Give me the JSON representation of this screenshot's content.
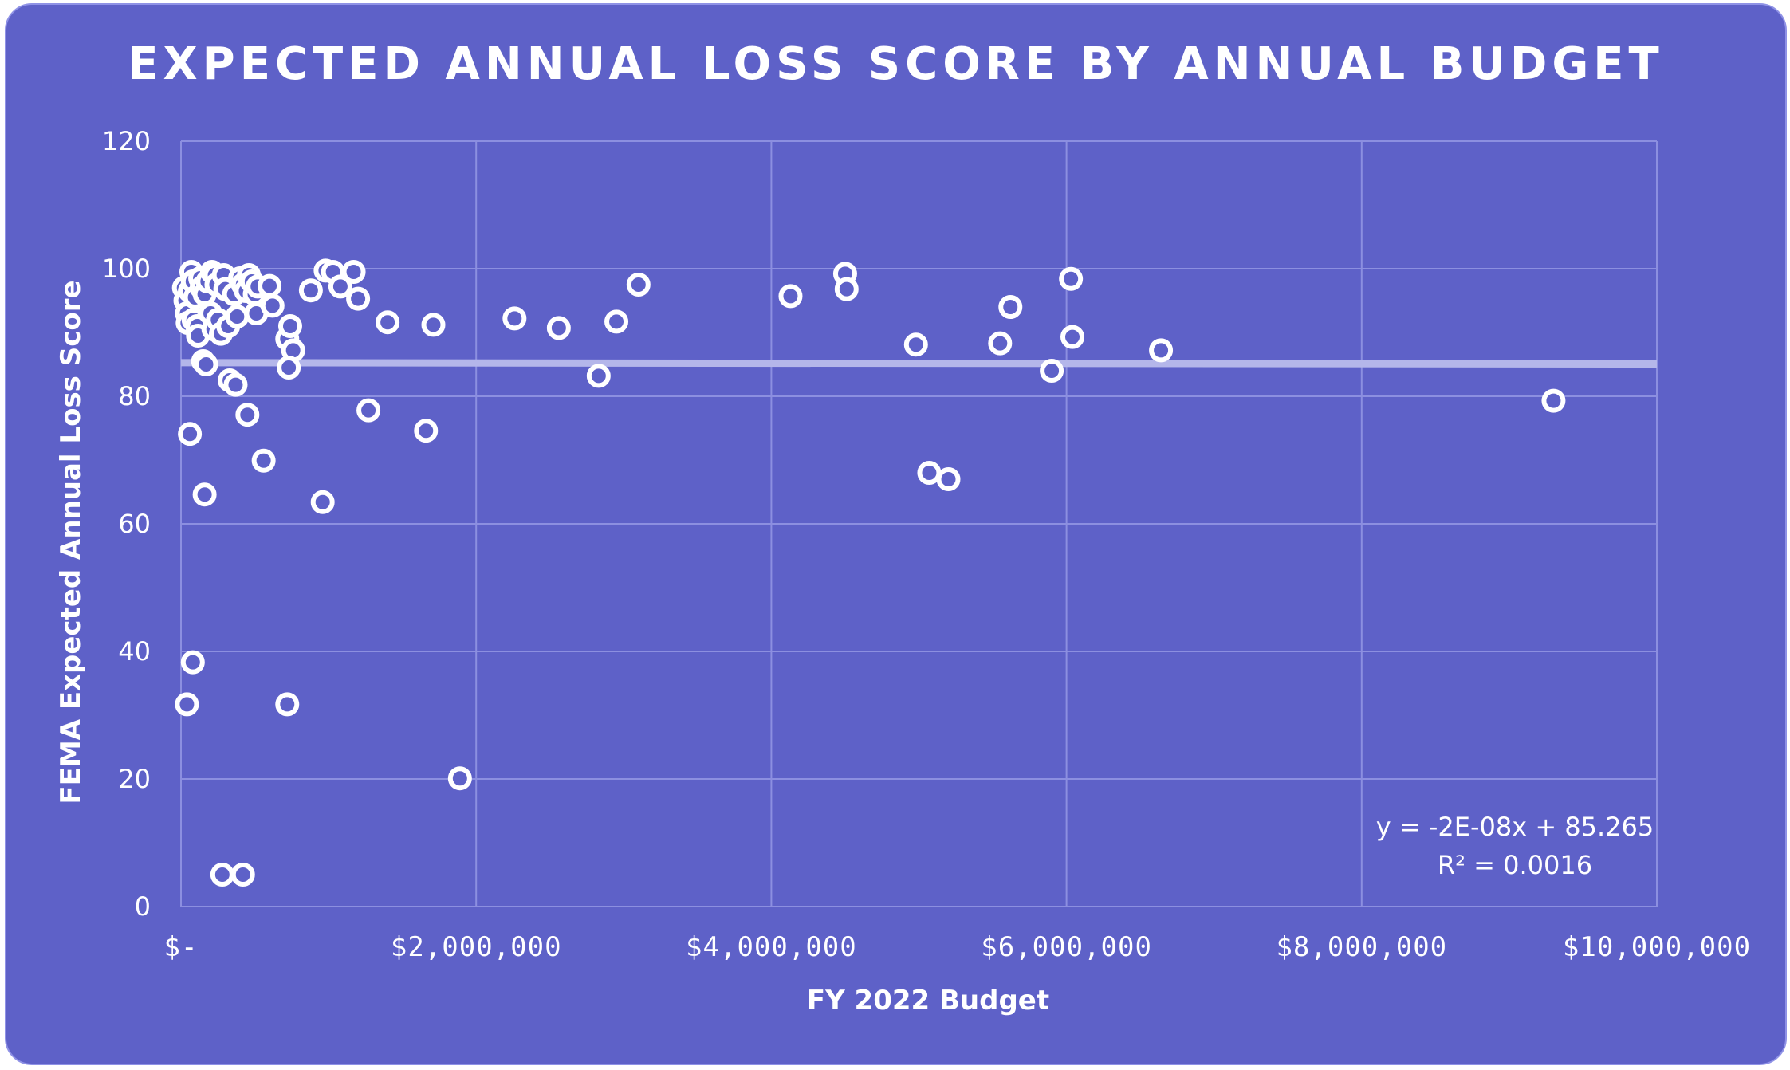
{
  "chart_data": {
    "type": "scatter",
    "title": "EXPECTED ANNUAL LOSS SCORE BY ANNUAL BUDGET",
    "xlabel": "FY 2022 Budget",
    "ylabel": "FEMA  Expected Annual Loss Score",
    "xlim": [
      0,
      10000000
    ],
    "ylim": [
      0,
      120
    ],
    "x_ticks": [
      0,
      2000000,
      4000000,
      6000000,
      8000000,
      10000000
    ],
    "x_tick_labels": [
      "$-",
      "$2,000,000",
      "$4,000,000",
      "$6,000,000",
      "$8,000,000",
      "$10,000,000"
    ],
    "y_ticks": [
      0,
      20,
      40,
      60,
      80,
      100,
      120
    ],
    "y_tick_labels": [
      "0",
      "20",
      "40",
      "60",
      "80",
      "100",
      "120"
    ],
    "grid": true,
    "trendline": {
      "slope": -2e-08,
      "intercept": 85.265,
      "equation": "y = -2E-08x + 85.265",
      "r_squared": "R² = 0.0016"
    },
    "colors": {
      "background": "#5E61C8",
      "marker": "#ffffff",
      "trendline": "#b4b6ea",
      "grid": "#8c8fe0"
    },
    "points": [
      {
        "x": 20000,
        "y": 97
      },
      {
        "x": 30000,
        "y": 95
      },
      {
        "x": 40000,
        "y": 93
      },
      {
        "x": 45000,
        "y": 91.5
      },
      {
        "x": 60000,
        "y": 96.5
      },
      {
        "x": 70000,
        "y": 99.5
      },
      {
        "x": 80000,
        "y": 98
      },
      {
        "x": 85000,
        "y": 92
      },
      {
        "x": 95000,
        "y": 95.5
      },
      {
        "x": 110000,
        "y": 91
      },
      {
        "x": 115000,
        "y": 89.5
      },
      {
        "x": 130000,
        "y": 98.5
      },
      {
        "x": 140000,
        "y": 97
      },
      {
        "x": 150000,
        "y": 85.5
      },
      {
        "x": 160000,
        "y": 96
      },
      {
        "x": 170000,
        "y": 85
      },
      {
        "x": 180000,
        "y": 98
      },
      {
        "x": 200000,
        "y": 93
      },
      {
        "x": 210000,
        "y": 99.5
      },
      {
        "x": 220000,
        "y": 90.5
      },
      {
        "x": 230000,
        "y": 99
      },
      {
        "x": 240000,
        "y": 97.5
      },
      {
        "x": 250000,
        "y": 92
      },
      {
        "x": 270000,
        "y": 89.8
      },
      {
        "x": 290000,
        "y": 99
      },
      {
        "x": 300000,
        "y": 96.8
      },
      {
        "x": 320000,
        "y": 91
      },
      {
        "x": 330000,
        "y": 82.5
      },
      {
        "x": 360000,
        "y": 96
      },
      {
        "x": 370000,
        "y": 81.8
      },
      {
        "x": 380000,
        "y": 92.5
      },
      {
        "x": 400000,
        "y": 98.5
      },
      {
        "x": 420000,
        "y": 97.5
      },
      {
        "x": 440000,
        "y": 96.5
      },
      {
        "x": 460000,
        "y": 99
      },
      {
        "x": 480000,
        "y": 98
      },
      {
        "x": 500000,
        "y": 96
      },
      {
        "x": 510000,
        "y": 93
      },
      {
        "x": 520000,
        "y": 97.2
      },
      {
        "x": 600000,
        "y": 97.3
      },
      {
        "x": 620000,
        "y": 94.2
      },
      {
        "x": 720000,
        "y": 89
      },
      {
        "x": 740000,
        "y": 91
      },
      {
        "x": 760000,
        "y": 87.2
      },
      {
        "x": 730000,
        "y": 84.5
      },
      {
        "x": 880000,
        "y": 96.6
      },
      {
        "x": 980000,
        "y": 99.7
      },
      {
        "x": 1030000,
        "y": 99.5
      },
      {
        "x": 1080000,
        "y": 97.2
      },
      {
        "x": 1170000,
        "y": 99.5
      },
      {
        "x": 1200000,
        "y": 95.3
      },
      {
        "x": 1400000,
        "y": 91.6
      },
      {
        "x": 1710000,
        "y": 91.2
      },
      {
        "x": 2260000,
        "y": 92.2
      },
      {
        "x": 2560000,
        "y": 90.7
      },
      {
        "x": 2950000,
        "y": 91.7
      },
      {
        "x": 3100000,
        "y": 97.5
      },
      {
        "x": 4130000,
        "y": 95.7
      },
      {
        "x": 4500000,
        "y": 99.2
      },
      {
        "x": 4510000,
        "y": 96.8
      },
      {
        "x": 4980000,
        "y": 88.1
      },
      {
        "x": 5550000,
        "y": 88.3
      },
      {
        "x": 5620000,
        "y": 94
      },
      {
        "x": 6030000,
        "y": 98.4
      },
      {
        "x": 6040000,
        "y": 89.3
      },
      {
        "x": 6640000,
        "y": 87.2
      },
      {
        "x": 2830000,
        "y": 83.2
      },
      {
        "x": 5900000,
        "y": 84
      },
      {
        "x": 1270000,
        "y": 77.8
      },
      {
        "x": 1660000,
        "y": 74.6
      },
      {
        "x": 60000,
        "y": 74.1
      },
      {
        "x": 450000,
        "y": 77.1
      },
      {
        "x": 560000,
        "y": 69.9
      },
      {
        "x": 5070000,
        "y": 68
      },
      {
        "x": 5200000,
        "y": 67
      },
      {
        "x": 160000,
        "y": 64.6
      },
      {
        "x": 960000,
        "y": 63.4
      },
      {
        "x": 80000,
        "y": 38.3
      },
      {
        "x": 40000,
        "y": 31.7
      },
      {
        "x": 720000,
        "y": 31.7
      },
      {
        "x": 1890000,
        "y": 20.1
      },
      {
        "x": 280000,
        "y": 5
      },
      {
        "x": 420000,
        "y": 5
      },
      {
        "x": 9300000,
        "y": 79.3
      }
    ]
  }
}
